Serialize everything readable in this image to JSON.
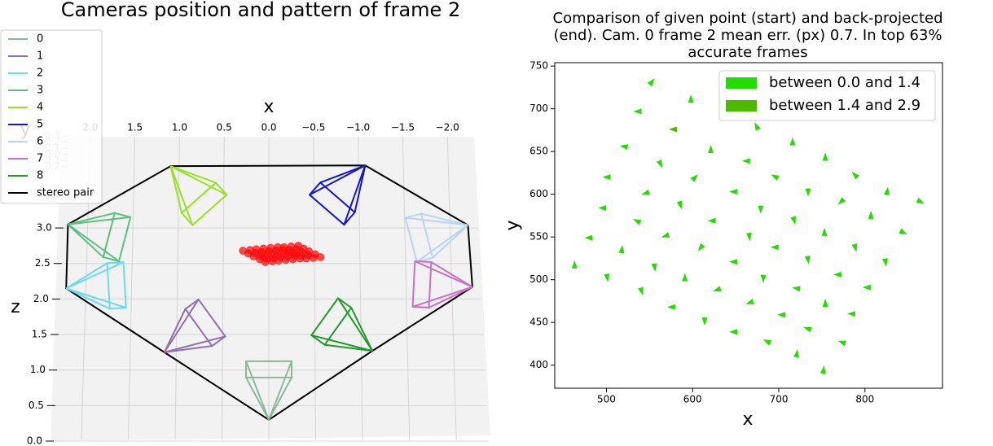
{
  "chart_data": [
    {
      "type": "cameras3d",
      "title": "Cameras position and pattern of frame 2",
      "xlabel": "x",
      "ylabel": "y",
      "zlabel": "z",
      "xlim": [
        2.4,
        -2.5
      ],
      "xticks": [
        {
          "value": 2,
          "label": "2.0"
        },
        1.5,
        {
          "value": 1,
          "label": "1.0"
        },
        0.5,
        {
          "value": 0,
          "label": "0.0"
        },
        {
          "value": -0.5,
          "label": "−0.5"
        },
        {
          "value": -1,
          "label": "−1.0"
        },
        {
          "value": -1.5,
          "label": "−1.5"
        },
        {
          "value": -2,
          "label": "−2.0"
        }
      ],
      "ylim": [
        -0.2,
        0.3
      ],
      "yticks": [
        0.3,
        0.2,
        0.1,
        {
          "value": 0,
          "label": "0.0"
        },
        {
          "value": -0.1,
          "label": "0.1"
        },
        {
          "value": -0.2,
          "label": "0.2"
        }
      ],
      "zlim": [
        0,
        4.3
      ],
      "zticks": [
        {
          "value": 0,
          "label": "0.0"
        },
        0.5,
        {
          "value": 1,
          "label": "1.0"
        },
        1.5,
        {
          "value": 2,
          "label": "2.0"
        },
        2.5,
        {
          "value": 3,
          "label": "3.0"
        }
      ],
      "series": [
        {
          "name": "0",
          "color": "#8cb89a",
          "x": 0.0,
          "z": 0.3
        },
        {
          "name": "1",
          "color": "#9070b0",
          "x": 1.17,
          "z": 1.25
        },
        {
          "name": "2",
          "color": "#6cd8f0",
          "x": 2.27,
          "z": 2.15
        },
        {
          "name": "3",
          "color": "#5cbf80",
          "x": 2.25,
          "z": 3.05
        },
        {
          "name": "4",
          "color": "#98e020",
          "x": 1.1,
          "z": 3.87
        },
        {
          "name": "5",
          "color": "#1414c8",
          "x": -1.08,
          "z": 3.88
        },
        {
          "name": "6",
          "color": "#b8d4f0",
          "x": -2.23,
          "z": 3.04
        },
        {
          "name": "7",
          "color": "#c870c8",
          "x": -2.28,
          "z": 2.17
        },
        {
          "name": "8",
          "color": "#22992a",
          "x": -1.16,
          "z": 1.27
        },
        {
          "name": "stereo pair",
          "color": "#000000"
        }
      ],
      "pattern": {
        "color": "#ff0000",
        "x": [
          0.29,
          0.21,
          0.14,
          0.06,
          -0.02,
          -0.1,
          -0.17,
          -0.25,
          -0.33,
          0.23,
          0.15,
          0.08,
          0.0,
          -0.08,
          -0.16,
          -0.23,
          -0.31,
          -0.39,
          0.17,
          0.09,
          0.02,
          -0.06,
          -0.14,
          -0.22,
          -0.29,
          -0.37,
          -0.45,
          0.1,
          0.02,
          -0.05,
          -0.13,
          -0.21,
          -0.29,
          -0.36,
          -0.44,
          -0.52,
          0.04,
          -0.04,
          -0.11,
          -0.19,
          -0.27,
          -0.35,
          -0.42,
          -0.5,
          -0.58
        ],
        "z": [
          2.68,
          2.69,
          2.7,
          2.71,
          2.72,
          2.73,
          2.73,
          2.74,
          2.75,
          2.64,
          2.65,
          2.66,
          2.67,
          2.68,
          2.69,
          2.69,
          2.7,
          2.71,
          2.6,
          2.61,
          2.62,
          2.63,
          2.64,
          2.65,
          2.65,
          2.66,
          2.67,
          2.56,
          2.57,
          2.58,
          2.59,
          2.6,
          2.61,
          2.61,
          2.62,
          2.63,
          2.52,
          2.53,
          2.54,
          2.55,
          2.56,
          2.57,
          2.57,
          2.58,
          2.59
        ]
      }
    },
    {
      "type": "quiver",
      "title": [
        "Comparison of given point (start) and back-projected",
        "(end). Cam. 0 frame 2 mean err. (px) 0.7. In top 63%",
        "accurate frames"
      ],
      "xlabel": "x",
      "ylabel": "y",
      "xlim": [
        440,
        890
      ],
      "ylim": [
        373,
        754
      ],
      "xticks": [
        500,
        600,
        700,
        800
      ],
      "yticks": [
        400,
        450,
        500,
        550,
        600,
        650,
        700,
        750
      ],
      "legend": "upper right",
      "series": [
        {
          "name": "between 0.0 and 1.4",
          "color": "#22dd00",
          "x": [
            553,
            536,
            598,
            520,
            674,
            621,
            716,
            754,
            563,
            500,
            603,
            662,
            695,
            788,
            826,
            545,
            586,
            647,
            734,
            772,
            865,
            807,
            495,
            535,
            622,
            679,
            718,
            845,
            479,
            518,
            568,
            609,
            666,
            695,
            753,
            789,
            463,
            556,
            591,
            647,
            734,
            768,
            824,
            501,
            541,
            628,
            682,
            720,
            802,
            575,
            666,
            754,
            703,
            784,
            614,
            647,
            733,
            686,
            773,
            721,
            752
          ],
          "y": [
            732,
            697,
            712,
            656,
            680,
            653,
            662,
            644,
            635,
            620,
            620,
            639,
            621,
            623,
            604,
            601,
            587,
            603,
            602,
            591,
            591,
            576,
            584,
            569,
            569,
            582,
            569,
            555,
            549,
            536,
            551,
            537,
            550,
            538,
            556,
            537,
            518,
            514,
            503,
            521,
            523,
            506,
            520,
            502,
            486,
            488,
            501,
            490,
            491,
            468,
            473,
            473,
            459,
            460,
            451,
            439,
            443,
            428,
            427,
            414,
            395
          ],
          "u": [
            0.4,
            -0.7,
            0,
            -0.7,
            -0.3,
            0,
            0,
            0,
            0.3,
            -0.7,
            0.5,
            -0.7,
            -0.6,
            -0.5,
            0.1,
            -0.6,
            0.2,
            -0.7,
            0,
            -0.5,
            0.6,
            0,
            -0.7,
            -0.6,
            -0.7,
            0,
            0.2,
            0.6,
            -0.7,
            0.1,
            -0.6,
            -0.4,
            0.1,
            -0.7,
            0,
            0.2,
            0,
            0.1,
            0,
            -0.7,
            0.1,
            -0.7,
            0.1,
            0.1,
            0.2,
            -0.6,
            0,
            -0.7,
            -0.7,
            -0.7,
            -0.6,
            0,
            -0.7,
            -0.7,
            0,
            -0.7,
            -0.6,
            -0.6,
            -0.6,
            0.1,
            0.1
          ],
          "v": [
            0.5,
            0,
            0.7,
            0.1,
            0.6,
            0.7,
            0.7,
            0.7,
            -0.6,
            0,
            0.5,
            0,
            0.3,
            0.5,
            0.7,
            -0.2,
            -0.7,
            0,
            -0.7,
            -0.5,
            -0.3,
            0.7,
            0,
            0.3,
            0,
            -0.7,
            -0.7,
            -0.3,
            0,
            0.7,
            -0.2,
            -0.5,
            -0.7,
            0,
            0.7,
            -0.7,
            0.7,
            -0.7,
            0.7,
            0,
            -0.7,
            0,
            -0.7,
            -0.7,
            -0.7,
            -0.2,
            -0.7,
            0.1,
            0,
            0,
            -0.2,
            0.7,
            0,
            0,
            -0.7,
            0,
            0.2,
            0.3,
            0.2,
            0.7,
            0.7
          ]
        },
        {
          "name": "between 1.4 and 2.9",
          "color": "#4cbb00",
          "x": [
            577
          ],
          "y": [
            676
          ],
          "u": [
            -0.7
          ],
          "v": [
            0
          ]
        }
      ]
    }
  ]
}
